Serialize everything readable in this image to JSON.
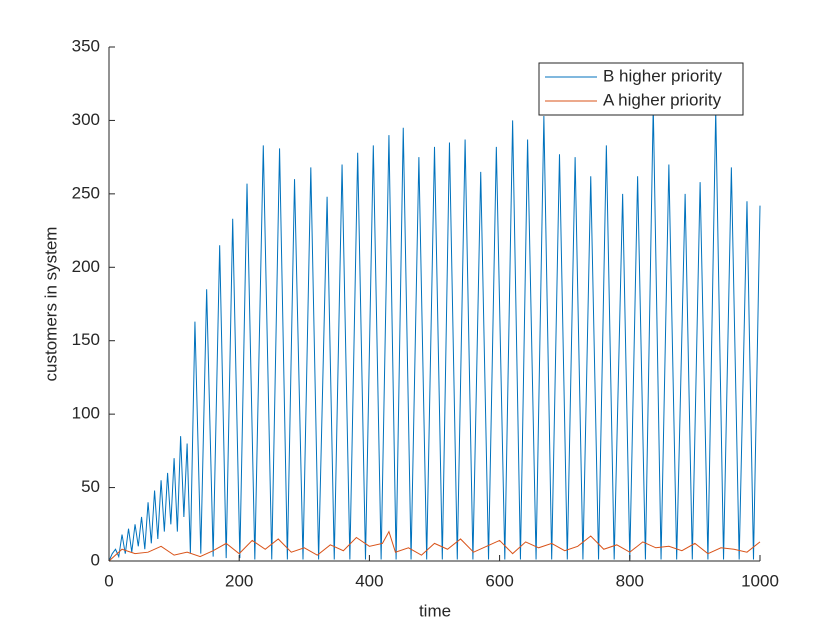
{
  "chart_data": {
    "type": "line",
    "xlabel": "time",
    "ylabel": "customers in system",
    "xlim": [
      0,
      1000
    ],
    "xticks": [
      0,
      200,
      400,
      600,
      800,
      1000
    ],
    "ylim": [
      0,
      350
    ],
    "yticks": [
      0,
      50,
      100,
      150,
      200,
      250,
      300,
      350
    ],
    "legend": "top-right",
    "series": [
      {
        "name": "B higher priority",
        "color": "#0072bd",
        "x": [
          0,
          5,
          10,
          15,
          20,
          25,
          30,
          35,
          40,
          45,
          50,
          55,
          60,
          65,
          70,
          75,
          80,
          85,
          90,
          95,
          100,
          105,
          110,
          115,
          120,
          125,
          132,
          141,
          150,
          160,
          170,
          180,
          190,
          201,
          212,
          224,
          237,
          250,
          262,
          274,
          285,
          298,
          310,
          322,
          335,
          346,
          358,
          370,
          382,
          394,
          406,
          418,
          430,
          441,
          452,
          464,
          476,
          488,
          500,
          512,
          523,
          535,
          547,
          559,
          571,
          583,
          595,
          608,
          620,
          632,
          643,
          656,
          668,
          680,
          692,
          704,
          716,
          728,
          740,
          752,
          764,
          776,
          789,
          800,
          812,
          824,
          836,
          848,
          860,
          872,
          885,
          896,
          908,
          920,
          932,
          944,
          956,
          968,
          980,
          990,
          1000
        ],
        "values": [
          0,
          5,
          8,
          3,
          18,
          5,
          22,
          6,
          25,
          10,
          30,
          8,
          40,
          12,
          48,
          15,
          55,
          20,
          60,
          25,
          70,
          20,
          85,
          30,
          80,
          5,
          163,
          5,
          185,
          3,
          215,
          2,
          233,
          2,
          257,
          1,
          283,
          1,
          281,
          1,
          260,
          1,
          268,
          1,
          248,
          1,
          270,
          1,
          278,
          1,
          283,
          1,
          290,
          1,
          295,
          1,
          275,
          1,
          282,
          1,
          285,
          1,
          287,
          1,
          265,
          1,
          282,
          1,
          300,
          1,
          287,
          1,
          303,
          1,
          277,
          1,
          275,
          1,
          262,
          1,
          283,
          1,
          250,
          1,
          262,
          1,
          310,
          1,
          270,
          1,
          250,
          1,
          258,
          1,
          307,
          1,
          268,
          1,
          245,
          1,
          242
        ]
      },
      {
        "name": "A higher priority",
        "color": "#d95319",
        "x": [
          0,
          20,
          40,
          60,
          80,
          100,
          120,
          140,
          160,
          180,
          200,
          220,
          240,
          260,
          280,
          300,
          320,
          340,
          360,
          380,
          400,
          420,
          430,
          440,
          460,
          480,
          500,
          520,
          540,
          560,
          580,
          600,
          620,
          640,
          660,
          680,
          700,
          720,
          740,
          760,
          780,
          800,
          820,
          840,
          860,
          880,
          900,
          920,
          940,
          960,
          980,
          1000
        ],
        "values": [
          0,
          8,
          5,
          6,
          10,
          4,
          6,
          3,
          7,
          12,
          5,
          14,
          8,
          15,
          6,
          9,
          4,
          11,
          7,
          16,
          10,
          12,
          20,
          6,
          9,
          4,
          12,
          8,
          15,
          6,
          10,
          14,
          5,
          13,
          9,
          12,
          7,
          10,
          17,
          8,
          11,
          6,
          13,
          9,
          10,
          7,
          12,
          5,
          9,
          8,
          6,
          13
        ]
      }
    ]
  }
}
